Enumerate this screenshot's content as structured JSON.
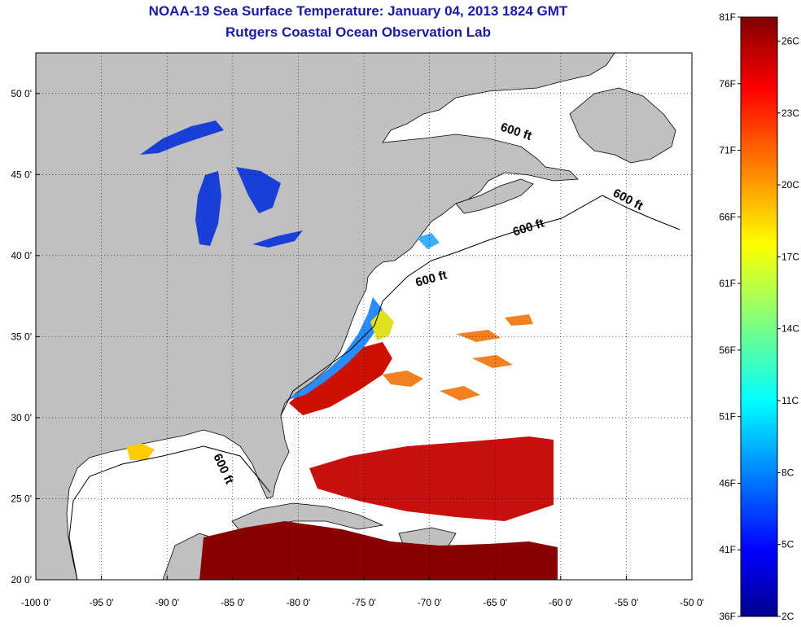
{
  "title": "NOAA-19 Sea Surface Temperature:  January 04, 2013 1824 GMT",
  "subtitle": "Rutgers Coastal Ocean Observation Lab",
  "map": {
    "lon_range": [
      -100,
      -50
    ],
    "lat_range": [
      20,
      52.5
    ],
    "lon_ticks": [
      {
        "value": -100,
        "label": "-100 0'"
      },
      {
        "value": -95,
        "label": "-95 0'"
      },
      {
        "value": -90,
        "label": "-90 0'"
      },
      {
        "value": -85,
        "label": "-85 0'"
      },
      {
        "value": -80,
        "label": "-80 0'"
      },
      {
        "value": -75,
        "label": "-75 0'"
      },
      {
        "value": -70,
        "label": "-70 0'"
      },
      {
        "value": -65,
        "label": "-65 0'"
      },
      {
        "value": -60,
        "label": "-60 0'"
      },
      {
        "value": -55,
        "label": "-55 0'"
      },
      {
        "value": -50,
        "label": "-50 0'"
      }
    ],
    "lat_ticks": [
      {
        "value": 20,
        "label": "20 0'"
      },
      {
        "value": 25,
        "label": "25 0'"
      },
      {
        "value": 30,
        "label": "30 0'"
      },
      {
        "value": 35,
        "label": "35 0'"
      },
      {
        "value": 40,
        "label": "40 0'"
      },
      {
        "value": 45,
        "label": "45 0'"
      },
      {
        "value": 50,
        "label": "50 0'"
      }
    ],
    "grid": "dotted",
    "land_color": "#c0c0c0",
    "contour_label": "600 ft"
  },
  "colorbar": {
    "fahrenheit_labels": [
      "81F",
      "76F",
      "71F",
      "66F",
      "61F",
      "56F",
      "51F",
      "46F",
      "41F",
      "36F"
    ],
    "celsius_labels": [
      "26C",
      "23C",
      "20C",
      "17C",
      "14C",
      "11C",
      "8C",
      "5C",
      "2C"
    ],
    "colormap": "jet",
    "range_f": [
      36,
      81
    ],
    "range_c": [
      2,
      27
    ]
  }
}
